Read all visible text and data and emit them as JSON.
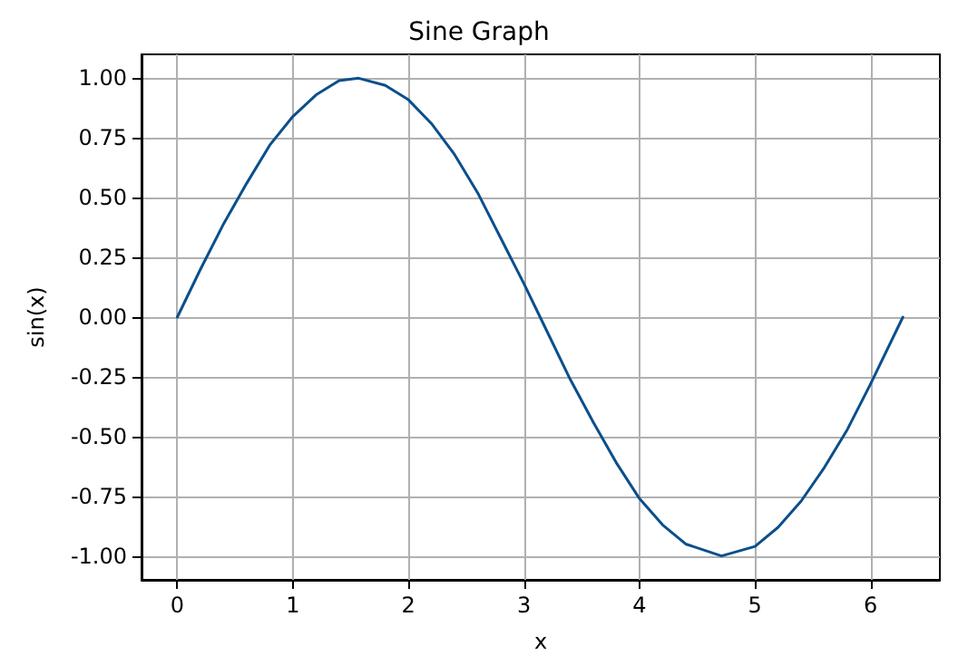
{
  "chart_data": {
    "type": "line",
    "title": "Sine Graph",
    "xlabel": "x",
    "ylabel": "sin(x)",
    "series": [
      {
        "color": "#0b4f8c",
        "x": [
          0,
          0.2,
          0.4,
          0.6,
          0.8,
          1.0,
          1.2,
          1.4,
          1.57,
          1.8,
          2.0,
          2.2,
          2.4,
          2.6,
          2.8,
          3.0,
          3.14,
          3.4,
          3.6,
          3.8,
          4.0,
          4.2,
          4.4,
          4.71,
          5.0,
          5.2,
          5.4,
          5.6,
          5.8,
          6.0,
          6.28
        ],
        "values": [
          0,
          0.2,
          0.39,
          0.56,
          0.72,
          0.84,
          0.93,
          0.99,
          1.0,
          0.97,
          0.91,
          0.81,
          0.68,
          0.52,
          0.33,
          0.14,
          0,
          -0.26,
          -0.44,
          -0.61,
          -0.76,
          -0.87,
          -0.95,
          -1.0,
          -0.96,
          -0.88,
          -0.77,
          -0.63,
          -0.47,
          -0.28,
          0
        ]
      }
    ],
    "xlim": [
      -0.31,
      6.6
    ],
    "xticks": [
      0,
      1,
      2,
      3,
      4,
      5,
      6
    ],
    "ylim": [
      -1.1,
      1.1
    ],
    "yticks": [
      {
        "value": -1,
        "label": "-1.00"
      },
      {
        "value": -0.75,
        "label": "-0.75"
      },
      {
        "value": -0.5,
        "label": "-0.50"
      },
      {
        "value": -0.25,
        "label": "-0.25"
      },
      {
        "value": 0,
        "label": "0.00"
      },
      {
        "value": 0.25,
        "label": "0.25"
      },
      {
        "value": 0.5,
        "label": "0.50"
      },
      {
        "value": 0.75,
        "label": "0.75"
      },
      {
        "value": 1,
        "label": "1.00"
      }
    ],
    "grid": true,
    "marker": "none",
    "line_style": "solid"
  }
}
